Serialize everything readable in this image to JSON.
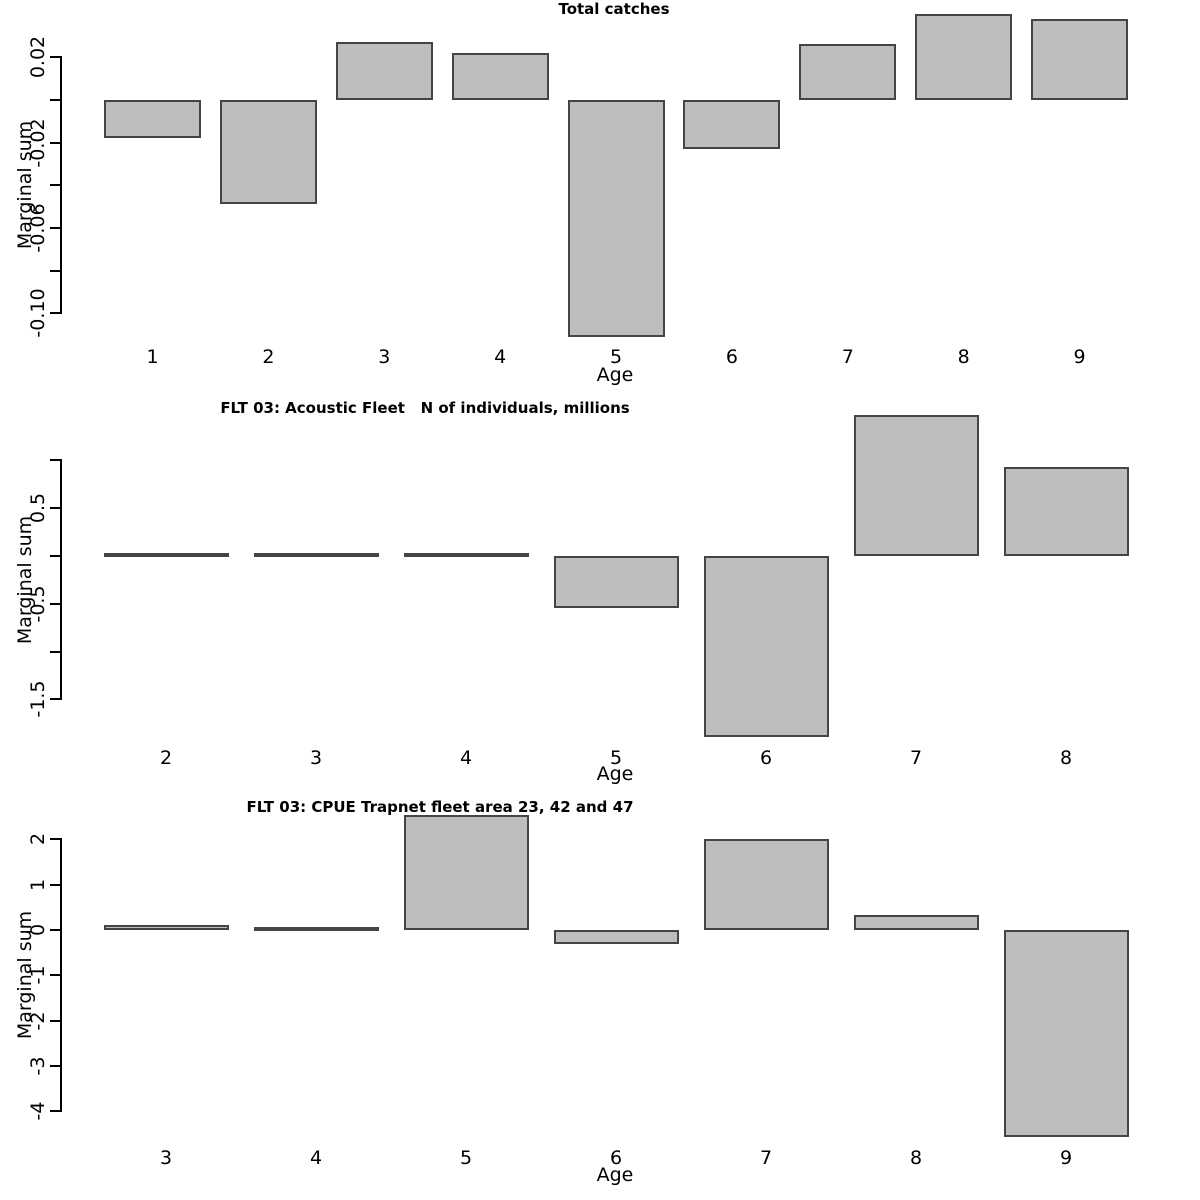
{
  "figure": {
    "background": "#ffffff",
    "bar_fill": "#bebebe",
    "bar_border": "#454545",
    "axis_color": "#000000",
    "text_color": "#000000"
  },
  "chart_data": [
    {
      "type": "bar",
      "title": "Total catches",
      "xlabel": "Age",
      "ylabel": "Marginal sum",
      "categories": [
        "1",
        "2",
        "3",
        "4",
        "5",
        "6",
        "7",
        "8",
        "9"
      ],
      "values": [
        -0.018,
        -0.049,
        0.027,
        0.022,
        -0.111,
        -0.023,
        0.026,
        0.04,
        0.038
      ],
      "ylim": [
        -0.115,
        0.03
      ],
      "grid": false,
      "legend": null,
      "yticks": [
        {
          "value": 0.02,
          "label": "0.02"
        },
        {
          "value": 0.0,
          "label": ""
        },
        {
          "value": -0.02,
          "label": "-0.02"
        },
        {
          "value": -0.04,
          "label": ""
        },
        {
          "value": -0.06,
          "label": "-0.06"
        },
        {
          "value": -0.08,
          "label": ""
        },
        {
          "value": -0.1,
          "label": "-0.10"
        }
      ]
    },
    {
      "type": "bar",
      "title": "FLT 03: Acoustic Fleet   N of individuals, millions",
      "xlabel": "Age",
      "ylabel": "Marginal sum",
      "categories": [
        "2",
        "3",
        "4",
        "5",
        "6",
        "7",
        "8"
      ],
      "values": [
        0.03,
        0.02,
        0.02,
        -0.54,
        -1.89,
        1.47,
        0.93
      ],
      "ylim": [
        -1.9,
        1.5
      ],
      "grid": false,
      "legend": null,
      "yticks": [
        {
          "value": 1.0,
          "label": ""
        },
        {
          "value": 0.5,
          "label": "0.5"
        },
        {
          "value": 0.0,
          "label": ""
        },
        {
          "value": -0.5,
          "label": "-0.5"
        },
        {
          "value": -1.0,
          "label": ""
        },
        {
          "value": -1.5,
          "label": "-1.5"
        }
      ]
    },
    {
      "type": "bar",
      "title": "FLT 03: CPUE Trapnet fleet area 23, 42 and 47",
      "xlabel": "Age",
      "ylabel": "Marginal sum",
      "categories": [
        "3",
        "4",
        "5",
        "6",
        "7",
        "8",
        "9"
      ],
      "values": [
        0.1,
        0.03,
        2.54,
        -0.31,
        2.01,
        0.32,
        -4.57
      ],
      "ylim": [
        -4.6,
        2.6
      ],
      "grid": false,
      "legend": null,
      "yticks": [
        {
          "value": 2,
          "label": "2"
        },
        {
          "value": 1,
          "label": "1"
        },
        {
          "value": 0,
          "label": "0"
        },
        {
          "value": -1,
          "label": "-1"
        },
        {
          "value": -2,
          "label": "-2"
        },
        {
          "value": -3,
          "label": "-3"
        },
        {
          "value": -4,
          "label": "-4"
        }
      ]
    }
  ]
}
